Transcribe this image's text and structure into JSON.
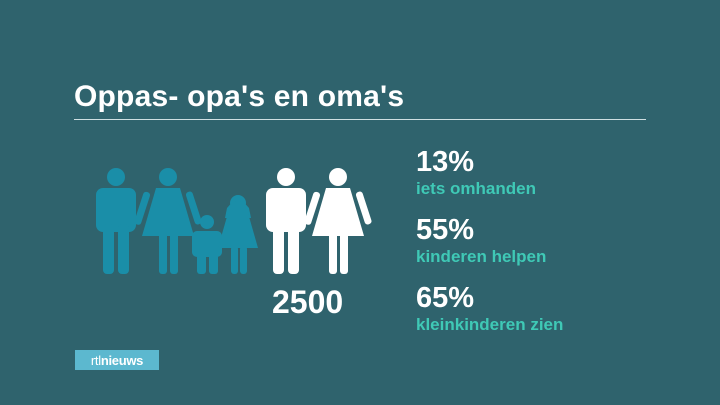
{
  "title": "Oppas- opa's en oma's",
  "colors": {
    "background": "#2f636d",
    "figure_teal": "#1a8ea8",
    "figure_white": "#ffffff",
    "label_green": "#3fc9b6",
    "logo_blue": "#5cb8cf"
  },
  "chart_data": {
    "type": "table",
    "count": "2500",
    "stats": [
      {
        "value": "13%",
        "label": "iets omhanden"
      },
      {
        "value": "55%",
        "label": "kinderen helpen"
      },
      {
        "value": "65%",
        "label": "kleinkinderen zien"
      }
    ]
  },
  "logo": {
    "prefix": "rtl",
    "name": "nieuws"
  }
}
